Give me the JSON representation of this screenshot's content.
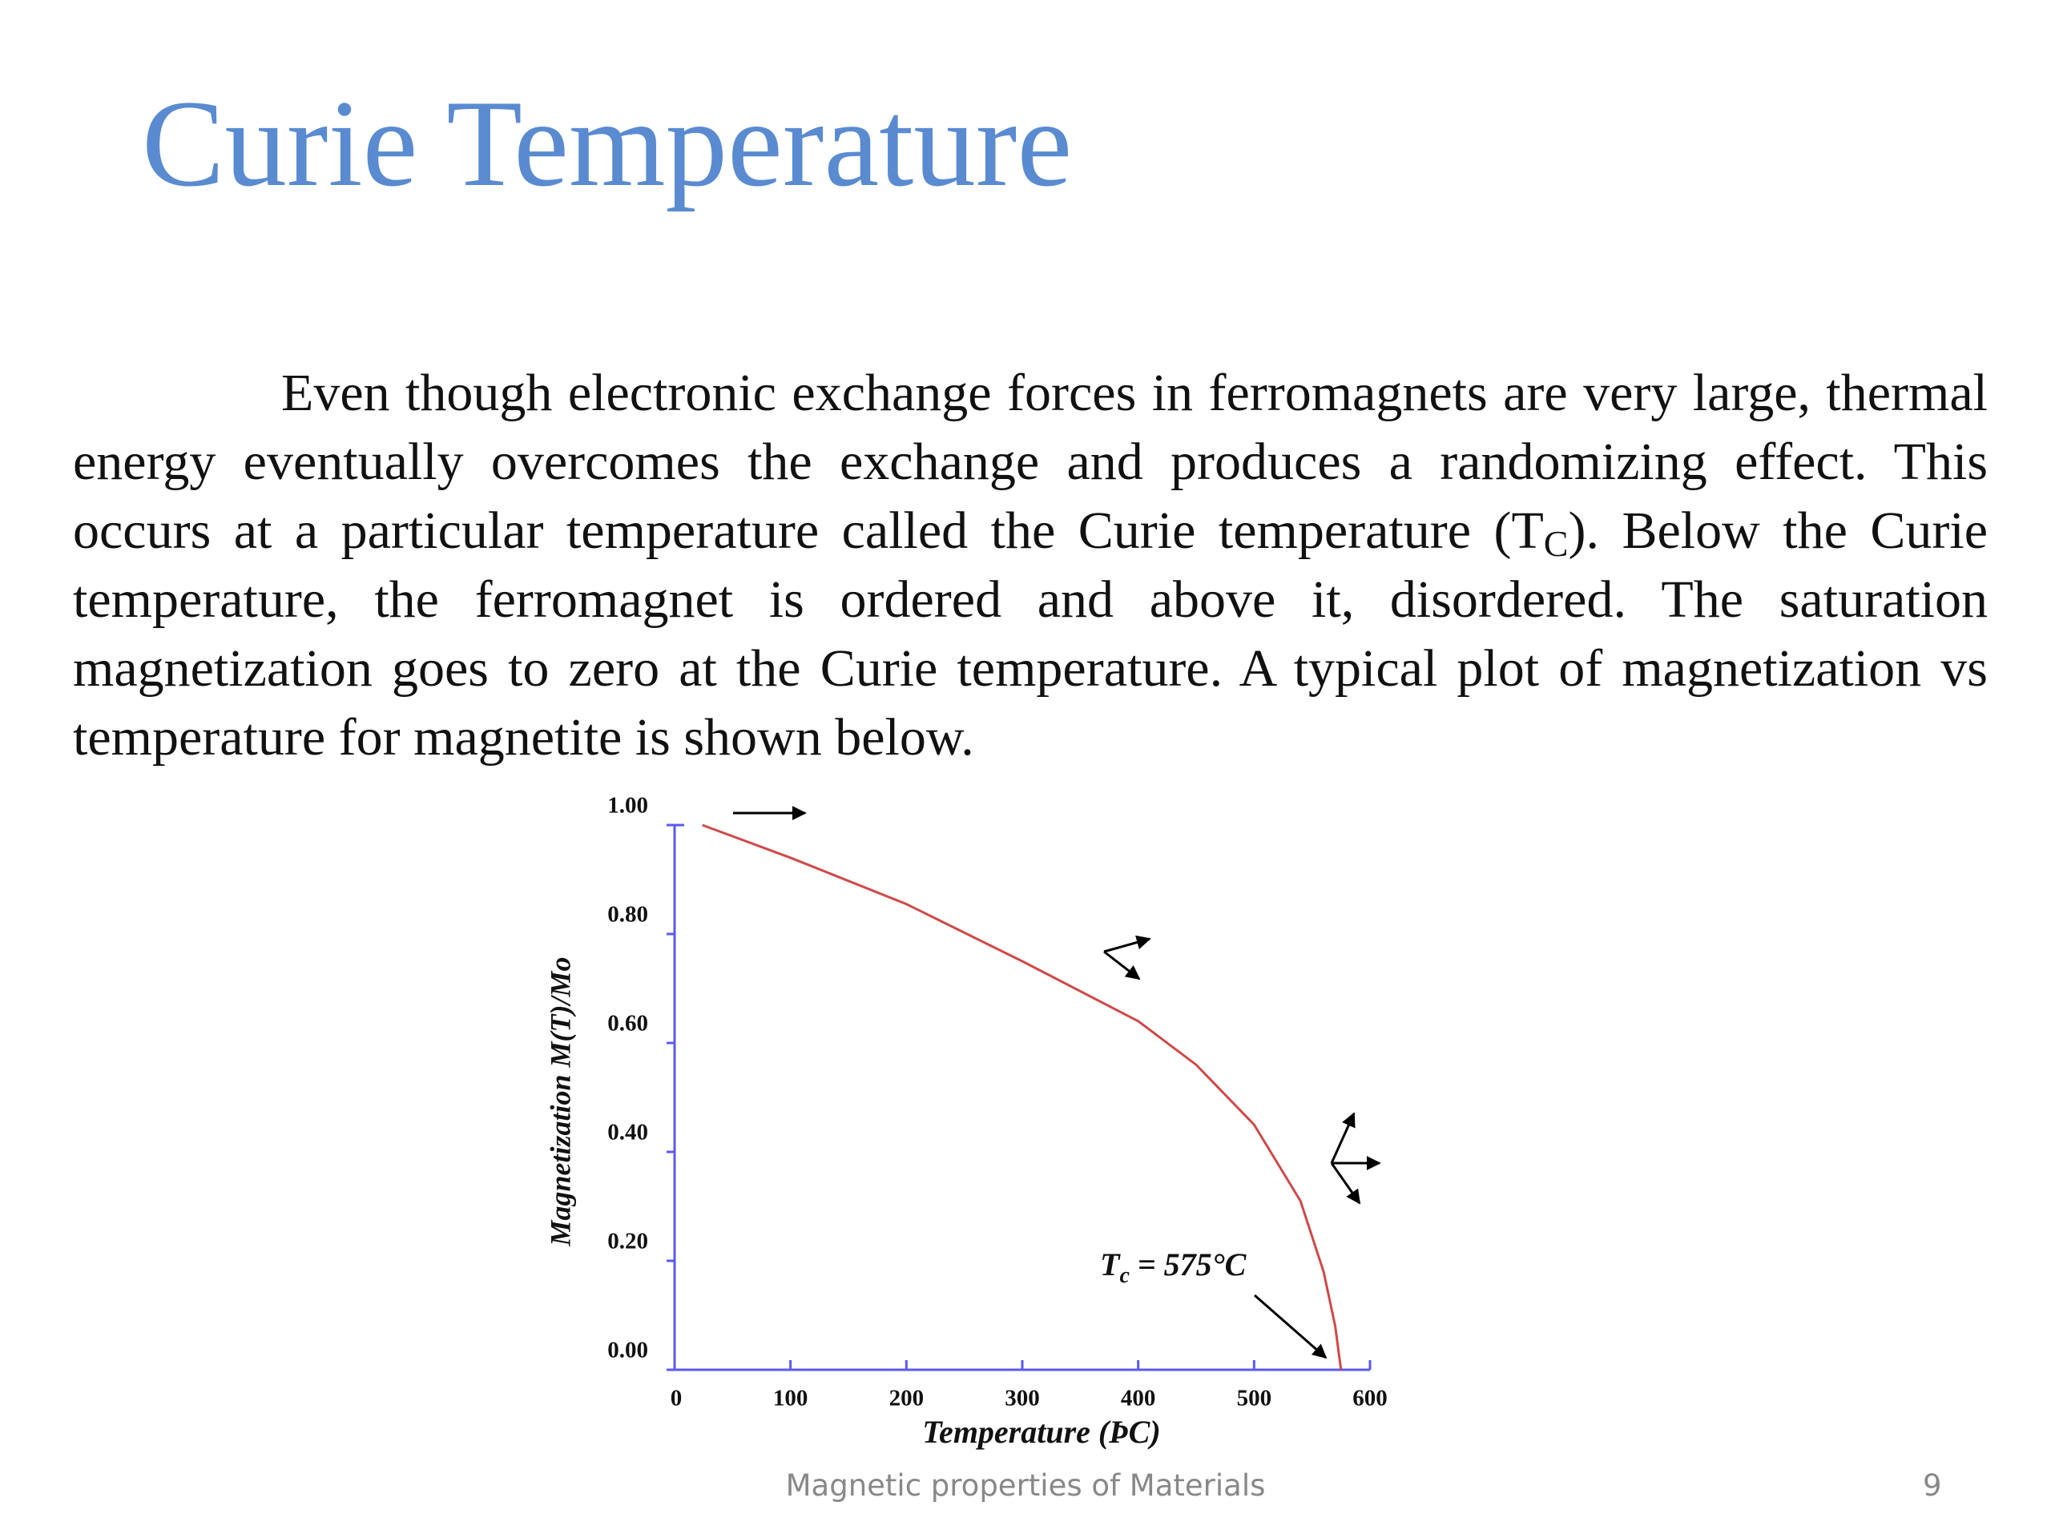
{
  "title": "Curie Temperature",
  "body": [
    "Even though electronic exchange forces in ferromagnets are very large, thermal energy eventually overcomes the exchange and produces a randomizing effect. This occurs at a particular temperature called the Curie temperature (T",
    "C",
    "). Below the Curie temperature, the ferromagnet is ordered and above it, disordered. The saturation magnetization goes to zero at the Curie temperature. A typical plot of magnetization vs temperature for magnetite is shown below."
  ],
  "footer": {
    "text": "Magnetic properties of Materials",
    "page": 9
  },
  "chart_data": {
    "type": "line",
    "x_label": "Temperature (ÞC)",
    "y_label": "Magnetization M(T)/Mo",
    "annotation": [
      "T",
      "c",
      " = 575°C"
    ],
    "x": [
      24,
      100,
      200,
      300,
      400,
      450,
      500,
      540,
      560,
      570,
      575
    ],
    "values": [
      1.0,
      0.94,
      0.855,
      0.75,
      0.64,
      0.56,
      0.45,
      0.31,
      0.18,
      0.08,
      0
    ],
    "color": "#d04848",
    "xlim": [
      0,
      600
    ],
    "ylim": [
      0,
      1.0
    ],
    "xticks": [
      0,
      100,
      200,
      300,
      400,
      500,
      600
    ],
    "yticks": [
      {
        "value": 0,
        "label": "0.00"
      },
      {
        "value": 0.2,
        "label": "0.20"
      },
      {
        "value": 0.4,
        "label": "0.40"
      },
      {
        "value": 0.6,
        "label": "0.60"
      },
      {
        "value": 0.8,
        "label": "0.80"
      },
      {
        "value": 1.0,
        "label": "1.00"
      }
    ]
  }
}
